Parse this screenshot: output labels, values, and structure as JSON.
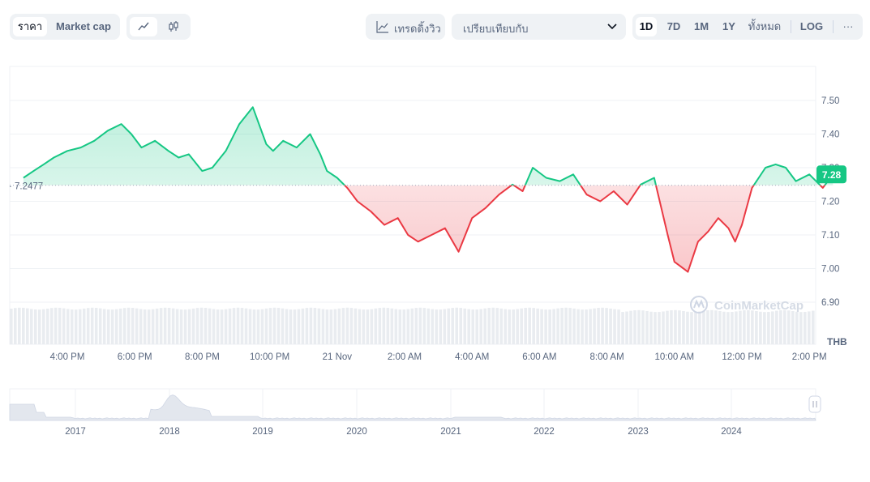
{
  "toolbar": {
    "price_tab": "ราคา",
    "marketcap_tab": "Market cap",
    "line_icon": "line-chart-icon",
    "candle_icon": "candlestick-icon",
    "tradingview_label": "เทรดดิ้งวิว",
    "tradingview_icon": "trend-line-icon",
    "compare_label": "เปรียบเทียบกับ",
    "ranges": [
      "1D",
      "7D",
      "1M",
      "1Y",
      "ทั้งหมด"
    ],
    "active_range": "1D",
    "log_label": "LOG",
    "more_label": "···"
  },
  "watermark": "CoinMarketCap",
  "colors": {
    "up": "#16c784",
    "down": "#ea3943",
    "grid": "#eff2f5",
    "accent": "#16c784"
  },
  "chart_data": [
    {
      "type": "area",
      "currency": "THB",
      "baseline": 7.2477,
      "baseline_label": "7.2477",
      "current_price_label": "7.28",
      "ylim": [
        6.85,
        7.6
      ],
      "y_ticks": [
        7.5,
        7.4,
        7.3,
        7.2,
        7.1,
        7.0,
        6.9
      ],
      "y_tick_labels": [
        "7.50",
        "7.40",
        "7.30",
        "7.20",
        "7.10",
        "7.00",
        "6.90"
      ],
      "x_tick_labels": [
        "4:00 PM",
        "6:00 PM",
        "8:00 PM",
        "10:00 PM",
        "21 Nov",
        "2:00 AM",
        "4:00 AM",
        "6:00 AM",
        "8:00 AM",
        "10:00 AM",
        "12:00 PM",
        "2:00 PM"
      ],
      "x_tick_hours": [
        16,
        18,
        20,
        22,
        24,
        26,
        28,
        30,
        32,
        34,
        36,
        38
      ],
      "x_hours": [
        14.7,
        15.0,
        15.3,
        15.6,
        16.0,
        16.4,
        16.8,
        17.2,
        17.6,
        17.9,
        18.2,
        18.6,
        19.0,
        19.3,
        19.6,
        20.0,
        20.3,
        20.7,
        21.1,
        21.5,
        21.9,
        22.1,
        22.4,
        22.8,
        23.2,
        23.5,
        23.7,
        24.0,
        24.3,
        24.6,
        25.0,
        25.4,
        25.8,
        26.1,
        26.4,
        26.8,
        27.2,
        27.6,
        28.0,
        28.4,
        28.8,
        29.2,
        29.5,
        29.8,
        30.2,
        30.6,
        31.0,
        31.4,
        31.8,
        32.2,
        32.6,
        33.0,
        33.4,
        33.8,
        34.0,
        34.4,
        34.7,
        35.0,
        35.3,
        35.6,
        35.8,
        36.0,
        36.3,
        36.7,
        37.0,
        37.3,
        37.6,
        38.0,
        38.4,
        38.7
      ],
      "values": [
        7.27,
        7.29,
        7.31,
        7.33,
        7.35,
        7.36,
        7.38,
        7.41,
        7.43,
        7.4,
        7.36,
        7.38,
        7.35,
        7.33,
        7.34,
        7.29,
        7.3,
        7.35,
        7.43,
        7.48,
        7.37,
        7.35,
        7.38,
        7.36,
        7.4,
        7.34,
        7.29,
        7.27,
        7.24,
        7.2,
        7.17,
        7.13,
        7.15,
        7.1,
        7.08,
        7.1,
        7.12,
        7.05,
        7.15,
        7.18,
        7.22,
        7.25,
        7.23,
        7.3,
        7.27,
        7.26,
        7.28,
        7.22,
        7.2,
        7.23,
        7.19,
        7.25,
        7.27,
        7.1,
        7.02,
        6.99,
        7.08,
        7.11,
        7.15,
        7.12,
        7.08,
        7.13,
        7.24,
        7.3,
        7.31,
        7.3,
        7.26,
        7.28,
        7.24,
        7.28
      ],
      "volume_bars": 199
    },
    {
      "type": "area",
      "x_tick_labels": [
        "2017",
        "2018",
        "2019",
        "2020",
        "2021",
        "2022",
        "2023",
        "2024"
      ]
    }
  ]
}
